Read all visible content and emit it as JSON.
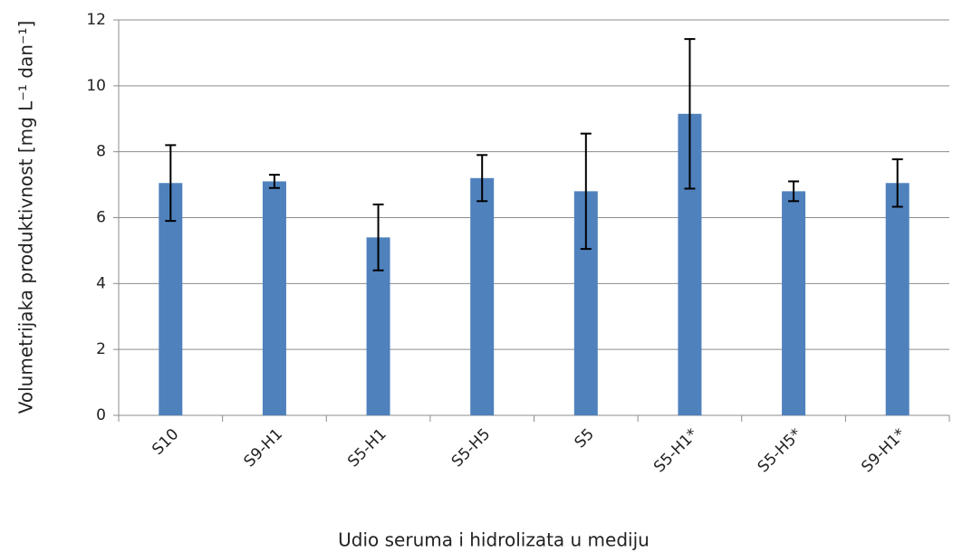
{
  "chart_data": {
    "type": "bar",
    "x_label": "Udio seruma i hidrolizata u mediju",
    "y_label": "Volumetrijaka produktivnost [mg L⁻¹ dan⁻¹]",
    "categories": [
      "S10",
      "S9-H1",
      "S5-H1",
      "S5-H5",
      "S5",
      "S5-H1*",
      "S5-H5*",
      "S9-H1*"
    ],
    "values": [
      7.05,
      7.1,
      5.4,
      7.2,
      6.8,
      9.15,
      6.8,
      7.05
    ],
    "errors": [
      1.15,
      0.2,
      1.0,
      0.7,
      1.75,
      2.27,
      0.3,
      0.72
    ],
    "color": "#4f81bd",
    "ylim": [
      0,
      12
    ],
    "yticks": [
      0,
      2,
      4,
      6,
      8,
      10,
      12
    ],
    "grid": true
  }
}
